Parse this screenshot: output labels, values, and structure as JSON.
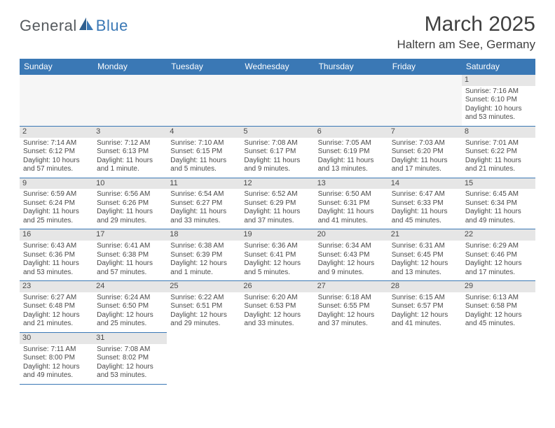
{
  "logo": {
    "text1": "General",
    "text2": "Blue"
  },
  "title": "March 2025",
  "location": "Haltern am See, Germany",
  "colors": {
    "header_bg": "#3a78b5",
    "header_fg": "#ffffff",
    "daynum_bg": "#e6e6e6",
    "border": "#3a78b5",
    "page_bg": "#ffffff",
    "text": "#4a4a4a"
  },
  "weekdays": [
    "Sunday",
    "Monday",
    "Tuesday",
    "Wednesday",
    "Thursday",
    "Friday",
    "Saturday"
  ],
  "weeks": [
    [
      {
        "blank": true
      },
      {
        "blank": true
      },
      {
        "blank": true
      },
      {
        "blank": true
      },
      {
        "blank": true
      },
      {
        "blank": true
      },
      {
        "day": 1,
        "sunrise": "7:16 AM",
        "sunset": "6:10 PM",
        "daylight": "10 hours and 53 minutes."
      }
    ],
    [
      {
        "day": 2,
        "sunrise": "7:14 AM",
        "sunset": "6:12 PM",
        "daylight": "10 hours and 57 minutes."
      },
      {
        "day": 3,
        "sunrise": "7:12 AM",
        "sunset": "6:13 PM",
        "daylight": "11 hours and 1 minute."
      },
      {
        "day": 4,
        "sunrise": "7:10 AM",
        "sunset": "6:15 PM",
        "daylight": "11 hours and 5 minutes."
      },
      {
        "day": 5,
        "sunrise": "7:08 AM",
        "sunset": "6:17 PM",
        "daylight": "11 hours and 9 minutes."
      },
      {
        "day": 6,
        "sunrise": "7:05 AM",
        "sunset": "6:19 PM",
        "daylight": "11 hours and 13 minutes."
      },
      {
        "day": 7,
        "sunrise": "7:03 AM",
        "sunset": "6:20 PM",
        "daylight": "11 hours and 17 minutes."
      },
      {
        "day": 8,
        "sunrise": "7:01 AM",
        "sunset": "6:22 PM",
        "daylight": "11 hours and 21 minutes."
      }
    ],
    [
      {
        "day": 9,
        "sunrise": "6:59 AM",
        "sunset": "6:24 PM",
        "daylight": "11 hours and 25 minutes."
      },
      {
        "day": 10,
        "sunrise": "6:56 AM",
        "sunset": "6:26 PM",
        "daylight": "11 hours and 29 minutes."
      },
      {
        "day": 11,
        "sunrise": "6:54 AM",
        "sunset": "6:27 PM",
        "daylight": "11 hours and 33 minutes."
      },
      {
        "day": 12,
        "sunrise": "6:52 AM",
        "sunset": "6:29 PM",
        "daylight": "11 hours and 37 minutes."
      },
      {
        "day": 13,
        "sunrise": "6:50 AM",
        "sunset": "6:31 PM",
        "daylight": "11 hours and 41 minutes."
      },
      {
        "day": 14,
        "sunrise": "6:47 AM",
        "sunset": "6:33 PM",
        "daylight": "11 hours and 45 minutes."
      },
      {
        "day": 15,
        "sunrise": "6:45 AM",
        "sunset": "6:34 PM",
        "daylight": "11 hours and 49 minutes."
      }
    ],
    [
      {
        "day": 16,
        "sunrise": "6:43 AM",
        "sunset": "6:36 PM",
        "daylight": "11 hours and 53 minutes."
      },
      {
        "day": 17,
        "sunrise": "6:41 AM",
        "sunset": "6:38 PM",
        "daylight": "11 hours and 57 minutes."
      },
      {
        "day": 18,
        "sunrise": "6:38 AM",
        "sunset": "6:39 PM",
        "daylight": "12 hours and 1 minute."
      },
      {
        "day": 19,
        "sunrise": "6:36 AM",
        "sunset": "6:41 PM",
        "daylight": "12 hours and 5 minutes."
      },
      {
        "day": 20,
        "sunrise": "6:34 AM",
        "sunset": "6:43 PM",
        "daylight": "12 hours and 9 minutes."
      },
      {
        "day": 21,
        "sunrise": "6:31 AM",
        "sunset": "6:45 PM",
        "daylight": "12 hours and 13 minutes."
      },
      {
        "day": 22,
        "sunrise": "6:29 AM",
        "sunset": "6:46 PM",
        "daylight": "12 hours and 17 minutes."
      }
    ],
    [
      {
        "day": 23,
        "sunrise": "6:27 AM",
        "sunset": "6:48 PM",
        "daylight": "12 hours and 21 minutes."
      },
      {
        "day": 24,
        "sunrise": "6:24 AM",
        "sunset": "6:50 PM",
        "daylight": "12 hours and 25 minutes."
      },
      {
        "day": 25,
        "sunrise": "6:22 AM",
        "sunset": "6:51 PM",
        "daylight": "12 hours and 29 minutes."
      },
      {
        "day": 26,
        "sunrise": "6:20 AM",
        "sunset": "6:53 PM",
        "daylight": "12 hours and 33 minutes."
      },
      {
        "day": 27,
        "sunrise": "6:18 AM",
        "sunset": "6:55 PM",
        "daylight": "12 hours and 37 minutes."
      },
      {
        "day": 28,
        "sunrise": "6:15 AM",
        "sunset": "6:57 PM",
        "daylight": "12 hours and 41 minutes."
      },
      {
        "day": 29,
        "sunrise": "6:13 AM",
        "sunset": "6:58 PM",
        "daylight": "12 hours and 45 minutes."
      }
    ],
    [
      {
        "day": 30,
        "sunrise": "7:11 AM",
        "sunset": "8:00 PM",
        "daylight": "12 hours and 49 minutes."
      },
      {
        "day": 31,
        "sunrise": "7:08 AM",
        "sunset": "8:02 PM",
        "daylight": "12 hours and 53 minutes."
      },
      {
        "blank": true
      },
      {
        "blank": true
      },
      {
        "blank": true
      },
      {
        "blank": true
      },
      {
        "blank": true
      }
    ]
  ],
  "labels": {
    "sunrise": "Sunrise:",
    "sunset": "Sunset:",
    "daylight": "Daylight:"
  }
}
